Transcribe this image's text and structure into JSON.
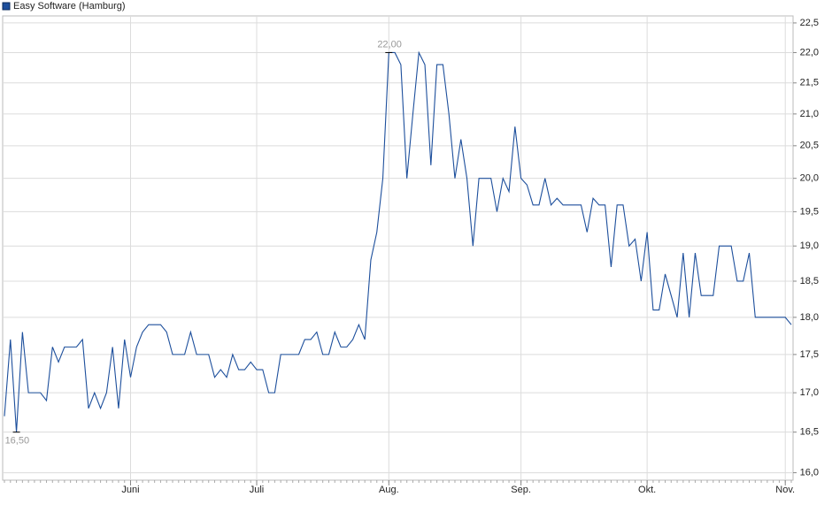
{
  "chart_data": {
    "type": "line",
    "log_scale": true,
    "grid": true,
    "legend": "top-left",
    "ylim": [
      15.91,
      22.62
    ],
    "yticks": [
      {
        "value": 16,
        "label": "16,0"
      },
      {
        "value": 16.5,
        "label": "16,5"
      },
      {
        "value": 17,
        "label": "17,0"
      },
      {
        "value": 17.5,
        "label": "17,5"
      },
      {
        "value": 18,
        "label": "18,0"
      },
      {
        "value": 18.5,
        "label": "18,5"
      },
      {
        "value": 19,
        "label": "19,0"
      },
      {
        "value": 19.5,
        "label": "19,5"
      },
      {
        "value": 20,
        "label": "20,0"
      },
      {
        "value": 20.5,
        "label": "20,5"
      },
      {
        "value": 21,
        "label": "21,0"
      },
      {
        "value": 21.5,
        "label": "21,5"
      },
      {
        "value": 22,
        "label": "22,0"
      },
      {
        "value": 22.5,
        "label": "22,5"
      }
    ],
    "categories": [
      null,
      null,
      null,
      null,
      null,
      null,
      null,
      null,
      null,
      null,
      null,
      null,
      null,
      null,
      null,
      null,
      null,
      null,
      null,
      null,
      null,
      "Juni",
      null,
      null,
      null,
      null,
      null,
      null,
      null,
      null,
      null,
      null,
      null,
      null,
      null,
      null,
      null,
      null,
      null,
      null,
      null,
      null,
      "Juli",
      null,
      null,
      null,
      null,
      null,
      null,
      null,
      null,
      null,
      null,
      null,
      null,
      null,
      null,
      null,
      null,
      null,
      null,
      null,
      null,
      null,
      "Aug.",
      null,
      null,
      null,
      null,
      null,
      null,
      null,
      null,
      null,
      null,
      null,
      null,
      null,
      null,
      null,
      null,
      null,
      null,
      null,
      null,
      null,
      "Sep.",
      null,
      null,
      null,
      null,
      null,
      null,
      null,
      null,
      null,
      null,
      null,
      null,
      null,
      null,
      null,
      null,
      null,
      null,
      null,
      null,
      "Okt.",
      null,
      null,
      null,
      null,
      null,
      null,
      null,
      null,
      null,
      null,
      null,
      null,
      null,
      null,
      null,
      null,
      null,
      null,
      null,
      null,
      null,
      null,
      "Nov.",
      null
    ],
    "series": [
      {
        "name": "Easy Software (Hamburg)",
        "color": "#1d4f9c",
        "values": [
          16.7,
          17.7,
          16.5,
          17.8,
          17.0,
          17.0,
          17.0,
          16.9,
          17.6,
          17.4,
          17.6,
          17.6,
          17.6,
          17.7,
          16.8,
          17.0,
          16.8,
          17.0,
          17.6,
          16.8,
          17.7,
          17.2,
          17.6,
          17.8,
          17.9,
          17.9,
          17.9,
          17.8,
          17.5,
          17.5,
          17.5,
          17.8,
          17.5,
          17.5,
          17.5,
          17.2,
          17.3,
          17.2,
          17.5,
          17.3,
          17.3,
          17.4,
          17.3,
          17.3,
          17.0,
          17.0,
          17.5,
          17.5,
          17.5,
          17.5,
          17.7,
          17.7,
          17.8,
          17.5,
          17.5,
          17.8,
          17.6,
          17.6,
          17.7,
          17.9,
          17.7,
          18.8,
          19.2,
          20.0,
          22.0,
          22.0,
          21.8,
          20.0,
          21.0,
          22.0,
          21.8,
          20.2,
          21.8,
          21.8,
          21.0,
          20.0,
          20.6,
          20.0,
          19.0,
          20.0,
          20.0,
          20.0,
          19.5,
          20.0,
          19.8,
          20.8,
          20.0,
          19.9,
          19.6,
          19.6,
          20.0,
          19.6,
          19.7,
          19.6,
          19.6,
          19.6,
          19.6,
          19.2,
          19.7,
          19.6,
          19.6,
          18.7,
          19.6,
          19.6,
          19.0,
          19.1,
          18.5,
          19.2,
          18.1,
          18.1,
          18.6,
          18.3,
          18.0,
          18.9,
          18.0,
          18.9,
          18.3,
          18.3,
          18.3,
          19.0,
          19.0,
          19.0,
          18.5,
          18.5,
          18.9,
          18.0,
          18.0,
          18.0,
          18.0,
          18.0,
          18.0,
          17.9
        ]
      }
    ],
    "annotations": [
      {
        "value": 22.0,
        "label": "22,00"
      },
      {
        "value": 16.5,
        "label": "16,50"
      }
    ]
  }
}
